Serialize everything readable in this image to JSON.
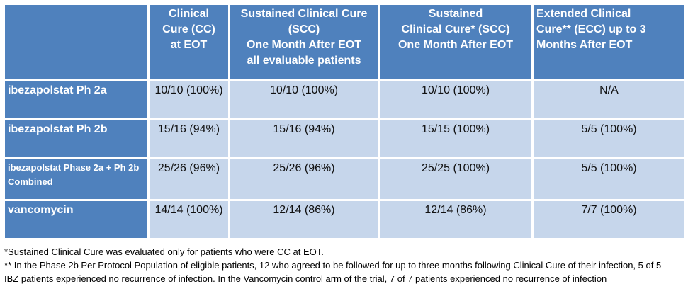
{
  "table": {
    "headers": [
      "",
      [
        "Clinical",
        "Cure (CC)",
        "at EOT"
      ],
      [
        "Sustained Clinical Cure",
        "(SCC)",
        "One Month After EOT",
        "all evaluable patients"
      ],
      [
        "Sustained",
        "Clinical Cure* (SCC)",
        "One Month After EOT"
      ],
      [
        "Extended Clinical",
        "Cure** (ECC) up to 3",
        "Months After EOT"
      ]
    ],
    "rows": [
      {
        "label": "ibezapolstat Ph 2a",
        "cells": [
          "10/10 (100%)",
          "10/10 (100%)",
          "10/10 (100%)",
          "N/A"
        ]
      },
      {
        "label": "ibezapolstat Ph 2b",
        "cells": [
          "15/16 (94%)",
          "15/16 (94%)",
          "15/15 (100%)",
          "5/5 (100%)"
        ]
      },
      {
        "label": "ibezapolstat Phase 2a + Ph 2b Combined",
        "cells": [
          "25/26 (96%)",
          "25/26 (96%)",
          "25/25 (100%)",
          "5/5 (100%)"
        ]
      },
      {
        "label": "vancomycin",
        "cells": [
          "14/14 (100%)",
          "12/14 (86%)",
          "12/14 (86%)",
          "7/7 (100%)"
        ]
      }
    ]
  },
  "footnotes": [
    "*Sustained Clinical Cure was evaluated only for patients who were CC at EOT.",
    "** In the Phase 2b Per Protocol Population of eligible patients, 12 who agreed to be followed for up to three months following Clinical Cure of their infection, 5 of 5 IBZ patients experienced no recurrence of infection. In the Vancomycin control arm of the trial, 7 of 7 patients experienced no recurrence of infection"
  ],
  "colors": {
    "header": "#4F81BD",
    "cell": "#C6D6EB"
  }
}
